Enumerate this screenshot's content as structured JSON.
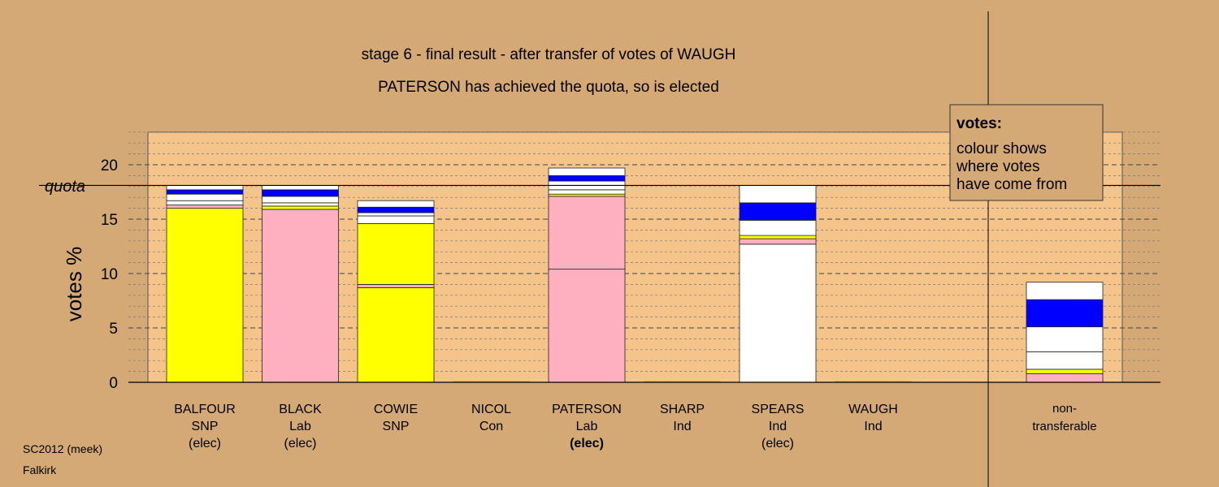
{
  "colors": {
    "background": "#d4a976",
    "plot_area": "#f5c48a",
    "SNP": "#ffff00",
    "Lab": "#ffb0c0",
    "Ind": "#ffffff",
    "transfer": "#0000ff",
    "legend_bg": "#d4a976"
  },
  "legend": {
    "title": "votes:",
    "lines": [
      "colour shows",
      "where votes",
      "have come from"
    ]
  },
  "footer": {
    "line1": "SC2012 (meek)",
    "line2": "Falkirk"
  },
  "chart_data": {
    "type": "bar",
    "stacked": true,
    "title": "stage 6 - final result - after transfer of votes of WAUGH",
    "subtitle": "PATERSON has achieved the quota, so is elected",
    "ylabel": "votes %",
    "ylim": [
      0,
      23
    ],
    "yticks": [
      0,
      5,
      10,
      15,
      20
    ],
    "quota_label": "quota",
    "quota": 18.1,
    "grid": true,
    "categories": [
      {
        "name": "BALFOUR",
        "party": "SNP",
        "status": "(elec)",
        "status_bold": false
      },
      {
        "name": "BLACK",
        "party": "Lab",
        "status": "(elec)",
        "status_bold": false
      },
      {
        "name": "COWIE",
        "party": "SNP",
        "status": "",
        "status_bold": false
      },
      {
        "name": "NICOL",
        "party": "Con",
        "status": "",
        "status_bold": false
      },
      {
        "name": "PATERSON",
        "party": "Lab",
        "status": "(elec)",
        "status_bold": true
      },
      {
        "name": "SHARP",
        "party": "Ind",
        "status": "",
        "status_bold": false
      },
      {
        "name": "SPEARS",
        "party": "Ind",
        "status": "(elec)",
        "status_bold": false
      },
      {
        "name": "WAUGH",
        "party": "Ind",
        "status": "",
        "status_bold": false
      }
    ],
    "separate_category": {
      "line1": "non-",
      "line2": "transferable"
    },
    "segments": [
      [
        {
          "v": 16.0,
          "c": "SNP"
        },
        {
          "v": 0.3,
          "c": "Lab"
        },
        {
          "v": 0.4,
          "c": "Ind"
        },
        {
          "v": 0.6,
          "c": "Ind"
        },
        {
          "v": 0.4,
          "c": "transfer"
        },
        {
          "v": 0.4,
          "c": "Ind"
        }
      ],
      [
        {
          "v": 15.9,
          "c": "Lab"
        },
        {
          "v": 0.3,
          "c": "SNP"
        },
        {
          "v": 0.3,
          "c": "Ind"
        },
        {
          "v": 0.6,
          "c": "Ind"
        },
        {
          "v": 0.6,
          "c": "transfer"
        },
        {
          "v": 0.4,
          "c": "Ind"
        }
      ],
      [
        {
          "v": 8.7,
          "c": "SNP"
        },
        {
          "v": 0.3,
          "c": "Lab"
        },
        {
          "v": 5.6,
          "c": "SNP"
        },
        {
          "v": 0.7,
          "c": "Ind"
        },
        {
          "v": 0.3,
          "c": "Ind"
        },
        {
          "v": 0.5,
          "c": "transfer"
        },
        {
          "v": 0.6,
          "c": "Ind"
        }
      ],
      [],
      [
        {
          "v": 10.4,
          "c": "Lab"
        },
        {
          "v": 6.7,
          "c": "Lab"
        },
        {
          "v": 0.2,
          "c": "SNP"
        },
        {
          "v": 0.4,
          "c": "Ind"
        },
        {
          "v": 0.8,
          "c": "Ind"
        },
        {
          "v": 0.5,
          "c": "transfer"
        },
        {
          "v": 0.7,
          "c": "Ind"
        }
      ],
      [],
      [
        {
          "v": 12.7,
          "c": "Ind"
        },
        {
          "v": 0.5,
          "c": "Lab"
        },
        {
          "v": 0.3,
          "c": "SNP"
        },
        {
          "v": 1.4,
          "c": "Ind"
        },
        {
          "v": 1.6,
          "c": "transfer"
        },
        {
          "v": 1.6,
          "c": "Ind"
        }
      ],
      []
    ],
    "non_transferable": [
      {
        "v": 0.8,
        "c": "Lab"
      },
      {
        "v": 0.4,
        "c": "SNP"
      },
      {
        "v": 1.6,
        "c": "Ind"
      },
      {
        "v": 2.3,
        "c": "Ind"
      },
      {
        "v": 2.5,
        "c": "transfer"
      },
      {
        "v": 1.6,
        "c": "Ind"
      }
    ]
  }
}
